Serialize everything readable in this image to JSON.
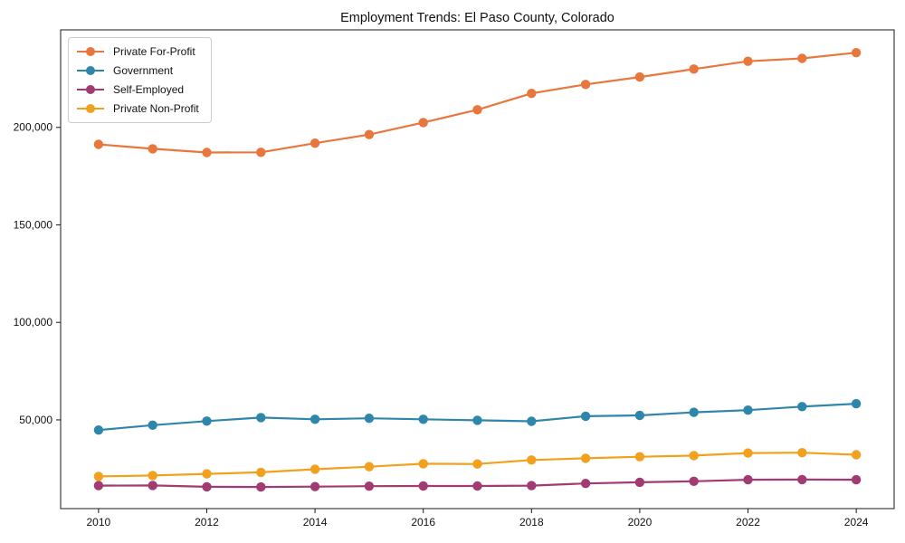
{
  "chart_data": {
    "type": "line",
    "title": "Employment Trends: El Paso County, Colorado",
    "xlabel": "",
    "ylabel": "",
    "x": [
      2010,
      2011,
      2012,
      2013,
      2014,
      2015,
      2016,
      2017,
      2018,
      2019,
      2020,
      2021,
      2022,
      2023,
      2024
    ],
    "series": [
      {
        "name": "Private For-Profit",
        "color": "#E8773D",
        "values": [
          191300,
          189000,
          187100,
          187200,
          191900,
          196300,
          202500,
          209000,
          217400,
          222000,
          225800,
          229900,
          233900,
          235400,
          238300
        ]
      },
      {
        "name": "Government",
        "color": "#2E86AB",
        "values": [
          44800,
          47300,
          49400,
          51200,
          50300,
          50800,
          50300,
          49800,
          49300,
          51900,
          52300,
          53900,
          55000,
          56800,
          58300
        ]
      },
      {
        "name": "Self-Employed",
        "color": "#A23B72",
        "values": [
          16300,
          16400,
          15700,
          15600,
          15800,
          16000,
          16100,
          16100,
          16300,
          17400,
          18000,
          18500,
          19300,
          19400,
          19300
        ]
      },
      {
        "name": "Private Non-Profit",
        "color": "#F2A11F",
        "values": [
          21000,
          21500,
          22300,
          23100,
          24700,
          26000,
          27500,
          27400,
          29400,
          30300,
          31100,
          31700,
          33000,
          33200,
          32100
        ]
      }
    ],
    "xticks": [
      2010,
      2012,
      2014,
      2016,
      2018,
      2020,
      2022,
      2024
    ],
    "xtick_labels": [
      "2010",
      "2012",
      "2014",
      "2016",
      "2018",
      "2020",
      "2022",
      "2024"
    ],
    "yticks": [
      50000,
      100000,
      150000,
      200000
    ],
    "ytick_labels": [
      "50,000",
      "100,000",
      "150,000",
      "200,000"
    ],
    "xlim": [
      2009.3,
      2024.7
    ],
    "ylim": [
      4500,
      250000
    ],
    "grid": false,
    "legend_position": "upper-left",
    "axis_color": "#1a1a1a",
    "tick_label_color": "#111111",
    "background": "#ffffff"
  }
}
